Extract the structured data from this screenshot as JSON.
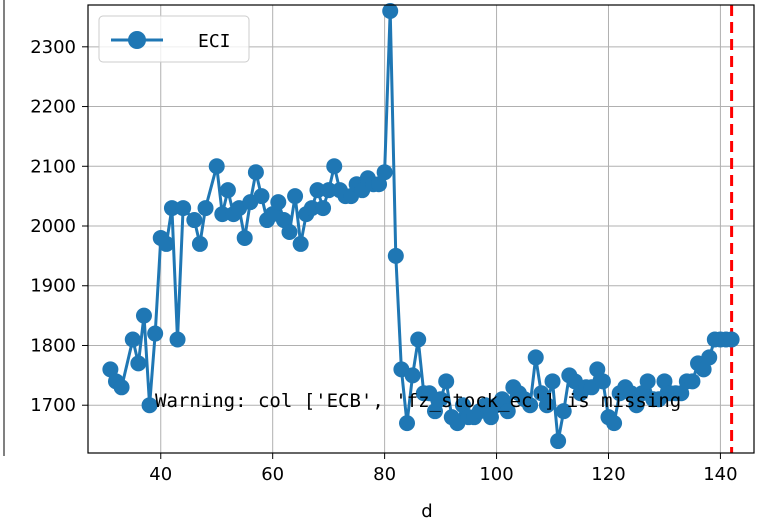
{
  "chart_data": {
    "type": "line",
    "xlabel": "d",
    "ylabel": "",
    "xlim": [
      27,
      146
    ],
    "ylim": [
      1620,
      2370
    ],
    "xticks": [
      40,
      60,
      80,
      100,
      120,
      140
    ],
    "yticks": [
      1700,
      1800,
      1900,
      2000,
      2100,
      2200,
      2300
    ],
    "grid": true,
    "legend": {
      "position": "top-left",
      "entries": [
        "ECI"
      ]
    },
    "colors": {
      "series": "#1f77b4",
      "vline": "#ff0000"
    },
    "series": [
      {
        "name": "ECI",
        "x": [
          31,
          32,
          33,
          35,
          36,
          37,
          38,
          39,
          40,
          41,
          42,
          43,
          44,
          46,
          47,
          48,
          50,
          51,
          52,
          53,
          54,
          55,
          56,
          57,
          58,
          59,
          60,
          61,
          62,
          63,
          64,
          65,
          66,
          67,
          68,
          69,
          70,
          71,
          72,
          73,
          74,
          75,
          76,
          77,
          78,
          79,
          80,
          81,
          82,
          83,
          84,
          85,
          86,
          87,
          88,
          89,
          90,
          91,
          92,
          93,
          94,
          95,
          96,
          97,
          98,
          99,
          100,
          101,
          102,
          103,
          104,
          105,
          106,
          107,
          108,
          109,
          110,
          111,
          112,
          113,
          114,
          115,
          116,
          117,
          118,
          119,
          120,
          121,
          122,
          123,
          124,
          125,
          126,
          127,
          128,
          129,
          130,
          131,
          132,
          133,
          134,
          135,
          136,
          137,
          138,
          139,
          140,
          141,
          142
        ],
        "y": [
          1760,
          1740,
          1730,
          1810,
          1770,
          1850,
          1700,
          1820,
          1980,
          1970,
          2030,
          1810,
          2030,
          2010,
          1970,
          2030,
          2100,
          2020,
          2060,
          2020,
          2030,
          1980,
          2040,
          2090,
          2050,
          2010,
          2020,
          2040,
          2010,
          1990,
          2050,
          1970,
          2020,
          2030,
          2060,
          2030,
          2060,
          2100,
          2060,
          2050,
          2050,
          2070,
          2060,
          2080,
          2070,
          2070,
          2090,
          2360,
          1950,
          1760,
          1670,
          1750,
          1810,
          1720,
          1720,
          1690,
          1710,
          1740,
          1680,
          1670,
          1700,
          1680,
          1680,
          1690,
          1700,
          1680,
          1700,
          1710,
          1690,
          1730,
          1720,
          1710,
          1700,
          1780,
          1720,
          1700,
          1740,
          1640,
          1690,
          1750,
          1740,
          1720,
          1730,
          1730,
          1760,
          1740,
          1680,
          1670,
          1720,
          1730,
          1720,
          1700,
          1720,
          1740,
          1710,
          1710,
          1740,
          1720,
          1720,
          1720,
          1740,
          1740,
          1770,
          1760,
          1780,
          1810,
          1810,
          1810,
          1810
        ]
      }
    ],
    "vline": {
      "x": 142,
      "style": "dashed"
    },
    "annotation": "Warning: col ['ECB', 'fz_stock_ec'] is missing"
  }
}
